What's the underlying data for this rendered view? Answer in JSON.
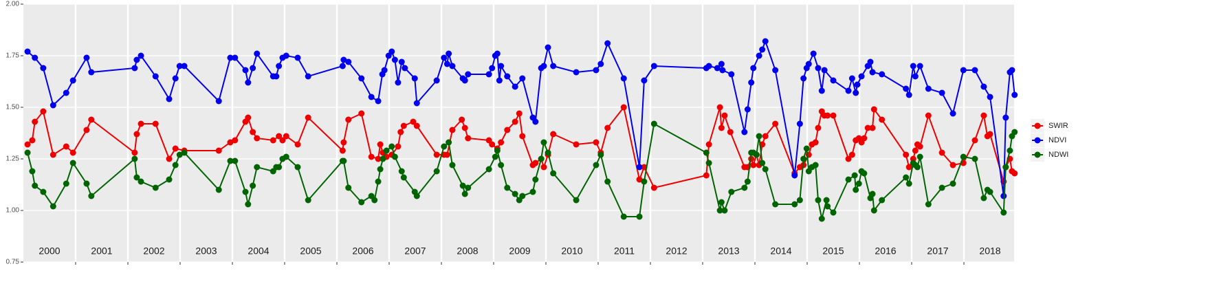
{
  "chart_data": {
    "type": "line",
    "xlim": [
      2000,
      2019
    ],
    "ylim": [
      0.75,
      2.0
    ],
    "yticks": [
      0.75,
      {
        "value": 1.0,
        "label": "1.00"
      },
      1.25,
      {
        "value": 1.5,
        "label": "1.50"
      },
      1.75,
      {
        "value": 2.0,
        "label": "2.00"
      }
    ],
    "xticks": [
      {
        "value": 2000.5,
        "label": "2000"
      },
      {
        "value": 2001.5,
        "label": "2001"
      },
      {
        "value": 2002.5,
        "label": "2002"
      },
      {
        "value": 2003.5,
        "label": "2003"
      },
      {
        "value": 2004.5,
        "label": "2004"
      },
      {
        "value": 2005.5,
        "label": "2005"
      },
      {
        "value": 2006.5,
        "label": "2006"
      },
      {
        "value": 2007.5,
        "label": "2007"
      },
      {
        "value": 2008.5,
        "label": "2008"
      },
      {
        "value": 2009.5,
        "label": "2009"
      },
      {
        "value": 2010.5,
        "label": "2010"
      },
      {
        "value": 2011.5,
        "label": "2011"
      },
      {
        "value": 2012.5,
        "label": "2012"
      },
      {
        "value": 2013.5,
        "label": "2013"
      },
      {
        "value": 2014.5,
        "label": "2014"
      },
      {
        "value": 2015.5,
        "label": "2015"
      },
      {
        "value": 2016.5,
        "label": "2016"
      },
      {
        "value": 2017.5,
        "label": "2017"
      },
      {
        "value": 2018.5,
        "label": "2018"
      }
    ],
    "xgrid": [
      2001,
      2002,
      2003,
      2004,
      2005,
      2006,
      2007,
      2008,
      2009,
      2010,
      2011,
      2012,
      2013,
      2014,
      2015,
      2016,
      2017,
      2018
    ],
    "grid": true,
    "legend": "right",
    "series": [
      {
        "name": "SWIR",
        "color": "#ee0000",
        "x": [
          2000.08,
          2000.17,
          2000.22,
          2000.38,
          2000.57,
          2000.82,
          2000.95,
          2001.21,
          2001.3,
          2002.13,
          2002.17,
          2002.25,
          2002.53,
          2002.79,
          2002.91,
          2003.08,
          2003.74,
          2003.96,
          2004.05,
          2004.25,
          2004.3,
          2004.39,
          2004.47,
          2004.78,
          2004.89,
          2004.96,
          2005.03,
          2005.25,
          2005.45,
          2006.11,
          2006.13,
          2006.22,
          2006.47,
          2006.66,
          2006.79,
          2006.83,
          2006.88,
          2006.95,
          2007.05,
          2007.17,
          2007.22,
          2007.28,
          2007.46,
          2007.53,
          2007.91,
          2008.05,
          2008.11,
          2008.21,
          2008.39,
          2008.45,
          2008.51,
          2008.91,
          2008.97,
          2009.07,
          2009.14,
          2009.26,
          2009.41,
          2009.49,
          2009.55,
          2009.75,
          2009.8,
          2009.91,
          2009.96,
          2010.04,
          2010.14,
          2010.58,
          2010.96,
          2011.05,
          2011.18,
          2011.49,
          2011.79,
          2011.88,
          2012.07,
          2013.07,
          2013.12,
          2013.33,
          2013.36,
          2013.42,
          2013.53,
          2013.8,
          2013.86,
          2013.93,
          2013.97,
          2014.03,
          2014.08,
          2014.14,
          2014.2,
          2014.39,
          2014.76,
          2014.86,
          2014.93,
          2015.03,
          2015.09,
          2015.16,
          2015.21,
          2015.28,
          2015.33,
          2015.39,
          2015.5,
          2015.79,
          2015.86,
          2015.93,
          2015.99,
          2016.04,
          2016.09,
          2016.16,
          2016.25,
          2016.28,
          2016.43,
          2016.89,
          2016.95,
          2017.03,
          2017.07,
          2017.11,
          2017.16,
          2017.32,
          2017.58,
          2017.79,
          2017.99,
          2018.21,
          2018.38,
          2018.45,
          2018.5,
          2018.76,
          2018.8,
          2018.88,
          2018.92,
          2018.97
        ],
        "values": [
          1.32,
          1.34,
          1.43,
          1.48,
          1.27,
          1.31,
          1.28,
          1.39,
          1.44,
          1.28,
          1.37,
          1.42,
          1.42,
          1.25,
          1.3,
          1.29,
          1.29,
          1.33,
          1.34,
          1.43,
          1.45,
          1.38,
          1.35,
          1.34,
          1.36,
          1.34,
          1.36,
          1.32,
          1.45,
          1.29,
          1.33,
          1.44,
          1.47,
          1.26,
          1.25,
          1.32,
          1.28,
          1.26,
          1.27,
          1.31,
          1.38,
          1.41,
          1.43,
          1.41,
          1.27,
          1.27,
          1.27,
          1.39,
          1.44,
          1.4,
          1.35,
          1.34,
          1.32,
          1.3,
          1.33,
          1.39,
          1.43,
          1.47,
          1.36,
          1.22,
          1.23,
          1.25,
          1.21,
          1.27,
          1.37,
          1.32,
          1.33,
          1.28,
          1.4,
          1.5,
          1.15,
          1.21,
          1.11,
          1.17,
          1.32,
          1.5,
          1.4,
          1.46,
          1.38,
          1.21,
          1.21,
          1.25,
          1.22,
          1.27,
          1.22,
          1.32,
          1.36,
          1.42,
          1.18,
          1.21,
          1.22,
          1.27,
          1.32,
          1.33,
          1.4,
          1.48,
          1.46,
          1.46,
          1.46,
          1.25,
          1.27,
          1.34,
          1.35,
          1.33,
          1.35,
          1.4,
          1.4,
          1.49,
          1.44,
          1.27,
          1.21,
          1.25,
          1.29,
          1.32,
          1.31,
          1.46,
          1.28,
          1.22,
          1.23,
          1.34,
          1.46,
          1.36,
          1.37,
          1.14,
          1.21,
          1.25,
          1.19,
          1.18
        ]
      },
      {
        "name": "NDVI",
        "color": "#0000ee",
        "x": [
          2000.08,
          2000.22,
          2000.38,
          2000.57,
          2000.82,
          2000.95,
          2001.21,
          2001.3,
          2002.13,
          2002.17,
          2002.25,
          2002.53,
          2002.79,
          2002.91,
          2002.99,
          2003.08,
          2003.74,
          2003.96,
          2004.05,
          2004.25,
          2004.3,
          2004.39,
          2004.47,
          2004.78,
          2004.84,
          2004.89,
          2004.96,
          2005.03,
          2005.25,
          2005.45,
          2006.11,
          2006.13,
          2006.22,
          2006.47,
          2006.66,
          2006.79,
          2006.87,
          2006.91,
          2006.99,
          2007.05,
          2007.11,
          2007.17,
          2007.24,
          2007.3,
          2007.49,
          2007.53,
          2007.91,
          2008.05,
          2008.11,
          2008.14,
          2008.21,
          2008.41,
          2008.45,
          2008.51,
          2008.91,
          2008.97,
          2009.03,
          2009.07,
          2009.11,
          2009.14,
          2009.26,
          2009.41,
          2009.55,
          2009.75,
          2009.8,
          2009.91,
          2009.96,
          2010.04,
          2010.14,
          2010.58,
          2010.96,
          2011.05,
          2011.18,
          2011.49,
          2011.79,
          2011.88,
          2012.07,
          2013.07,
          2013.12,
          2013.28,
          2013.36,
          2013.38,
          2013.55,
          2013.8,
          2013.86,
          2013.93,
          2013.97,
          2014.08,
          2014.14,
          2014.2,
          2014.39,
          2014.76,
          2014.86,
          2014.93,
          2014.99,
          2015.03,
          2015.12,
          2015.21,
          2015.28,
          2015.33,
          2015.5,
          2015.79,
          2015.86,
          2015.93,
          2015.96,
          2016.04,
          2016.16,
          2016.21,
          2016.25,
          2016.43,
          2016.89,
          2016.95,
          2017.03,
          2017.07,
          2017.16,
          2017.32,
          2017.58,
          2017.79,
          2017.99,
          2018.21,
          2018.38,
          2018.5,
          2018.76,
          2018.8,
          2018.88,
          2018.92,
          2018.97
        ],
        "values": [
          1.77,
          1.74,
          1.69,
          1.51,
          1.57,
          1.63,
          1.74,
          1.67,
          1.69,
          1.73,
          1.75,
          1.65,
          1.54,
          1.64,
          1.7,
          1.7,
          1.53,
          1.74,
          1.74,
          1.68,
          1.62,
          1.69,
          1.76,
          1.65,
          1.65,
          1.7,
          1.74,
          1.75,
          1.74,
          1.65,
          1.7,
          1.73,
          1.72,
          1.64,
          1.55,
          1.53,
          1.66,
          1.68,
          1.75,
          1.77,
          1.73,
          1.62,
          1.72,
          1.69,
          1.64,
          1.52,
          1.63,
          1.74,
          1.71,
          1.76,
          1.7,
          1.64,
          1.63,
          1.66,
          1.66,
          1.69,
          1.75,
          1.76,
          1.63,
          1.7,
          1.65,
          1.6,
          1.64,
          1.45,
          1.43,
          1.69,
          1.7,
          1.79,
          1.7,
          1.67,
          1.68,
          1.71,
          1.81,
          1.64,
          1.21,
          1.63,
          1.7,
          1.69,
          1.7,
          1.69,
          1.71,
          1.68,
          1.66,
          1.38,
          1.49,
          1.62,
          1.69,
          1.75,
          1.78,
          1.82,
          1.68,
          1.17,
          1.42,
          1.64,
          1.69,
          1.71,
          1.76,
          1.69,
          1.58,
          1.68,
          1.63,
          1.58,
          1.64,
          1.57,
          1.61,
          1.65,
          1.7,
          1.72,
          1.67,
          1.66,
          1.59,
          1.56,
          1.7,
          1.65,
          1.7,
          1.59,
          1.57,
          1.47,
          1.68,
          1.68,
          1.6,
          1.55,
          1.07,
          1.45,
          1.67,
          1.68,
          1.56
        ]
      },
      {
        "name": "NDWI",
        "color": "#006400",
        "x": [
          2000.08,
          2000.17,
          2000.22,
          2000.38,
          2000.57,
          2000.82,
          2000.95,
          2001.21,
          2001.3,
          2002.13,
          2002.17,
          2002.25,
          2002.53,
          2002.79,
          2002.91,
          2002.99,
          2003.08,
          2003.74,
          2003.96,
          2004.05,
          2004.25,
          2004.3,
          2004.39,
          2004.47,
          2004.78,
          2004.84,
          2004.89,
          2004.96,
          2005.03,
          2005.25,
          2005.45,
          2006.11,
          2006.13,
          2006.22,
          2006.47,
          2006.66,
          2006.72,
          2006.79,
          2006.83,
          2006.88,
          2006.95,
          2007.05,
          2007.11,
          2007.24,
          2007.28,
          2007.49,
          2007.53,
          2007.91,
          2008.05,
          2008.14,
          2008.21,
          2008.41,
          2008.45,
          2008.51,
          2008.91,
          2009.03,
          2009.07,
          2009.14,
          2009.26,
          2009.41,
          2009.49,
          2009.55,
          2009.75,
          2009.8,
          2009.91,
          2009.96,
          2010.04,
          2010.14,
          2010.58,
          2010.96,
          2011.05,
          2011.18,
          2011.49,
          2011.79,
          2011.88,
          2012.07,
          2013.07,
          2013.12,
          2013.33,
          2013.36,
          2013.42,
          2013.55,
          2013.8,
          2013.86,
          2013.93,
          2013.97,
          2014.03,
          2014.08,
          2014.14,
          2014.2,
          2014.39,
          2014.76,
          2014.86,
          2014.93,
          2014.99,
          2015.03,
          2015.09,
          2015.16,
          2015.21,
          2015.28,
          2015.37,
          2015.39,
          2015.5,
          2015.79,
          2015.91,
          2015.93,
          2015.99,
          2016.04,
          2016.09,
          2016.21,
          2016.25,
          2016.28,
          2016.43,
          2016.89,
          2016.95,
          2017.03,
          2017.07,
          2017.11,
          2017.16,
          2017.32,
          2017.58,
          2017.79,
          2017.99,
          2018.21,
          2018.38,
          2018.45,
          2018.5,
          2018.76,
          2018.8,
          2018.88,
          2018.92,
          2018.97
        ],
        "values": [
          1.28,
          1.19,
          1.12,
          1.09,
          1.02,
          1.13,
          1.23,
          1.13,
          1.07,
          1.25,
          1.16,
          1.14,
          1.11,
          1.15,
          1.22,
          1.27,
          1.28,
          1.1,
          1.24,
          1.24,
          1.09,
          1.03,
          1.12,
          1.21,
          1.19,
          1.21,
          1.21,
          1.25,
          1.26,
          1.21,
          1.05,
          1.24,
          1.24,
          1.11,
          1.04,
          1.07,
          1.05,
          1.14,
          1.2,
          1.25,
          1.29,
          1.31,
          1.26,
          1.19,
          1.16,
          1.09,
          1.07,
          1.19,
          1.31,
          1.33,
          1.22,
          1.12,
          1.08,
          1.11,
          1.2,
          1.26,
          1.29,
          1.22,
          1.11,
          1.08,
          1.05,
          1.07,
          1.09,
          1.15,
          1.25,
          1.33,
          1.28,
          1.18,
          1.05,
          1.22,
          1.27,
          1.14,
          0.97,
          0.97,
          1.14,
          1.42,
          1.28,
          1.23,
          1.0,
          1.04,
          1.0,
          1.09,
          1.11,
          1.14,
          1.28,
          1.28,
          1.27,
          1.36,
          1.23,
          1.2,
          1.03,
          1.03,
          1.05,
          1.25,
          1.3,
          1.19,
          1.21,
          1.22,
          1.05,
          0.96,
          1.05,
          1.02,
          0.99,
          1.15,
          1.17,
          1.1,
          1.13,
          1.19,
          1.18,
          1.06,
          1.08,
          1.0,
          1.05,
          1.16,
          1.13,
          1.23,
          1.22,
          1.21,
          1.26,
          1.03,
          1.11,
          1.13,
          1.26,
          1.25,
          1.06,
          1.1,
          1.09,
          0.99,
          1.21,
          1.29,
          1.36,
          1.38
        ]
      }
    ]
  }
}
